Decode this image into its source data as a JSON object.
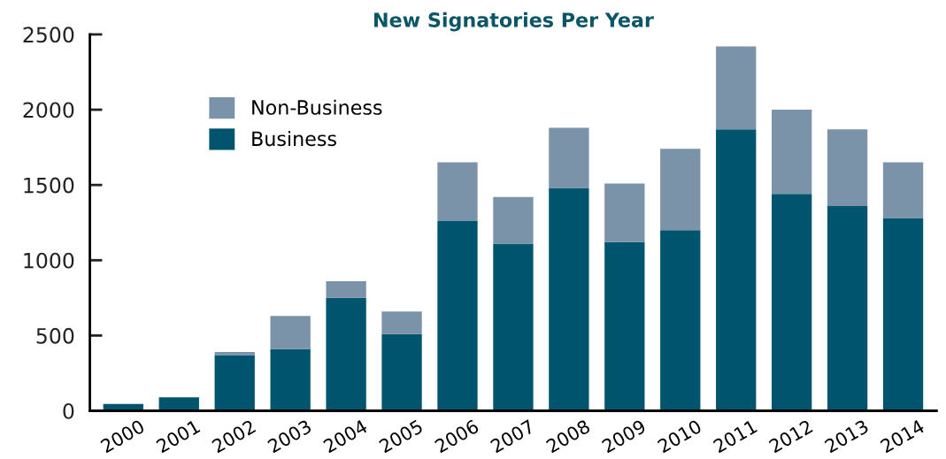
{
  "chart_data": {
    "type": "bar",
    "title": "New Signatories Per Year",
    "stacked": true,
    "categories": [
      "2000",
      "2001",
      "2002",
      "2003",
      "2004",
      "2005",
      "2006",
      "2007",
      "2008",
      "2009",
      "2010",
      "2011",
      "2012",
      "2013",
      "2014"
    ],
    "series": [
      {
        "name": "Business",
        "color": "#00546e",
        "values": [
          45,
          90,
          370,
          410,
          750,
          510,
          1260,
          1110,
          1480,
          1120,
          1200,
          1870,
          1440,
          1360,
          1280
        ]
      },
      {
        "name": "Non-Business",
        "color": "#7b93a8",
        "values": [
          0,
          0,
          20,
          220,
          110,
          150,
          390,
          310,
          400,
          390,
          540,
          550,
          560,
          510,
          370
        ]
      }
    ],
    "ylim": [
      0,
      2500
    ],
    "yticks": [
      0,
      500,
      1000,
      1500,
      2000,
      2500
    ],
    "grid": false,
    "legend": "top left"
  }
}
